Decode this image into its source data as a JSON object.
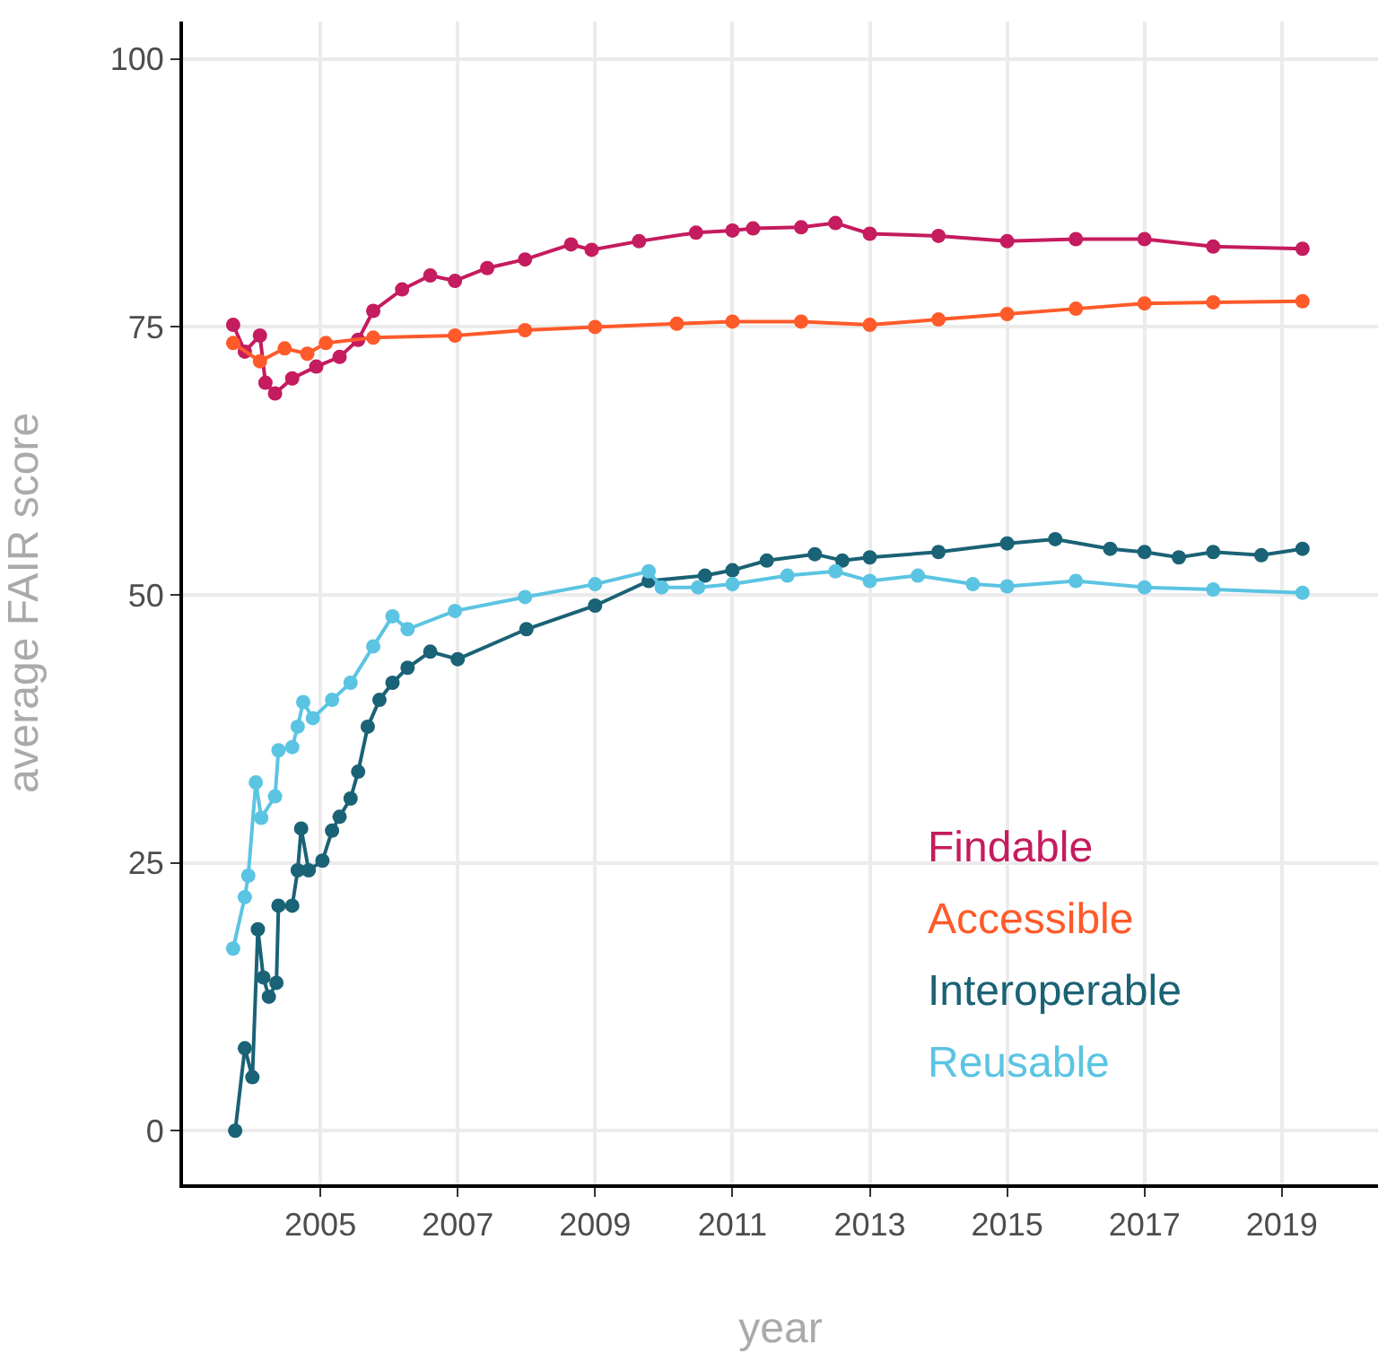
{
  "chart_data": {
    "type": "line",
    "xlabel": "year",
    "ylabel": "average FAIR score",
    "xlim": [
      2003.0,
      2020.4
    ],
    "xticks": [
      2005,
      2007,
      2009,
      2011,
      2013,
      2015,
      2017,
      2019
    ],
    "ylim": [
      -5,
      103.5
    ],
    "yticks": [
      0,
      25,
      50,
      75,
      100
    ],
    "grid": true,
    "legend": "bottom right",
    "marker": "circle",
    "line_style": "solid",
    "series": [
      {
        "name": "Findable",
        "color": "#c51b5f",
        "x": [
          2003.73,
          2003.9,
          2004.12,
          2004.2,
          2004.34,
          2004.59,
          2004.94,
          2005.28,
          2005.55,
          2005.77,
          2006.19,
          2006.6,
          2006.96,
          2007.43,
          2007.98,
          2008.65,
          2008.95,
          2009.64,
          2010.47,
          2011.0,
          2011.3,
          2012.0,
          2012.5,
          2013.0,
          2014.0,
          2015.0,
          2016.0,
          2017.0,
          2018.0,
          2019.3
        ],
        "values": [
          75.2,
          72.7,
          74.2,
          69.8,
          68.8,
          70.2,
          71.3,
          72.2,
          73.8,
          76.5,
          78.5,
          79.8,
          79.3,
          80.5,
          81.3,
          82.7,
          82.2,
          83.0,
          83.8,
          84.0,
          84.2,
          84.3,
          84.7,
          83.7,
          83.5,
          83.0,
          83.2,
          83.2,
          82.5,
          82.3
        ]
      },
      {
        "name": "Accessible",
        "color": "#fe5a2a",
        "x": [
          2003.73,
          2004.12,
          2004.48,
          2004.81,
          2005.08,
          2005.77,
          2006.96,
          2007.98,
          2009.0,
          2010.19,
          2011.0,
          2012.0,
          2013.0,
          2014.0,
          2015.0,
          2016.0,
          2017.0,
          2018.0,
          2019.3
        ],
        "values": [
          73.5,
          71.8,
          73.0,
          72.5,
          73.5,
          74.0,
          74.2,
          74.7,
          75.0,
          75.3,
          75.5,
          75.5,
          75.2,
          75.7,
          76.2,
          76.7,
          77.2,
          77.3,
          77.4
        ]
      },
      {
        "name": "Interoperable",
        "color": "#1a6275",
        "x": [
          2003.76,
          2003.9,
          2004.01,
          2004.09,
          2004.17,
          2004.25,
          2004.36,
          2004.39,
          2004.59,
          2004.67,
          2004.72,
          2004.83,
          2005.03,
          2005.17,
          2005.28,
          2005.44,
          2005.55,
          2005.69,
          2005.86,
          2006.05,
          2006.27,
          2006.6,
          2007.0,
          2008.0,
          2009.0,
          2009.78,
          2010.6,
          2011.0,
          2011.5,
          2012.2,
          2012.6,
          2013.0,
          2014.0,
          2015.0,
          2015.7,
          2016.5,
          2017.0,
          2017.5,
          2018.0,
          2018.7,
          2019.3
        ],
        "values": [
          0.0,
          7.7,
          5.0,
          18.8,
          14.3,
          12.5,
          13.8,
          21.0,
          21.0,
          24.3,
          28.2,
          24.3,
          25.2,
          28.0,
          29.3,
          31.0,
          33.5,
          37.7,
          40.2,
          41.8,
          43.2,
          44.7,
          44.0,
          46.8,
          49.0,
          51.3,
          51.8,
          52.3,
          53.2,
          53.8,
          53.2,
          53.5,
          54.0,
          54.8,
          55.2,
          54.3,
          54.0,
          53.5,
          54.0,
          53.7,
          54.3
        ]
      },
      {
        "name": "Reusable",
        "color": "#5bc4e2",
        "x": [
          2003.73,
          2003.9,
          2003.95,
          2004.06,
          2004.14,
          2004.34,
          2004.39,
          2004.59,
          2004.67,
          2004.75,
          2004.89,
          2005.17,
          2005.44,
          2005.77,
          2006.05,
          2006.27,
          2006.96,
          2007.98,
          2009.0,
          2009.78,
          2009.97,
          2010.5,
          2011.0,
          2011.8,
          2012.5,
          2013.0,
          2013.7,
          2014.5,
          2015.0,
          2016.0,
          2017.0,
          2018.0,
          2019.3
        ],
        "values": [
          17.0,
          21.8,
          23.8,
          32.5,
          29.2,
          31.2,
          35.5,
          35.8,
          37.7,
          40.0,
          38.5,
          40.2,
          41.8,
          45.2,
          48.0,
          46.8,
          48.5,
          49.8,
          51.0,
          52.2,
          50.7,
          50.7,
          51.0,
          51.8,
          52.2,
          51.3,
          51.8,
          51.0,
          50.8,
          51.3,
          50.7,
          50.5,
          50.2
        ]
      }
    ]
  }
}
